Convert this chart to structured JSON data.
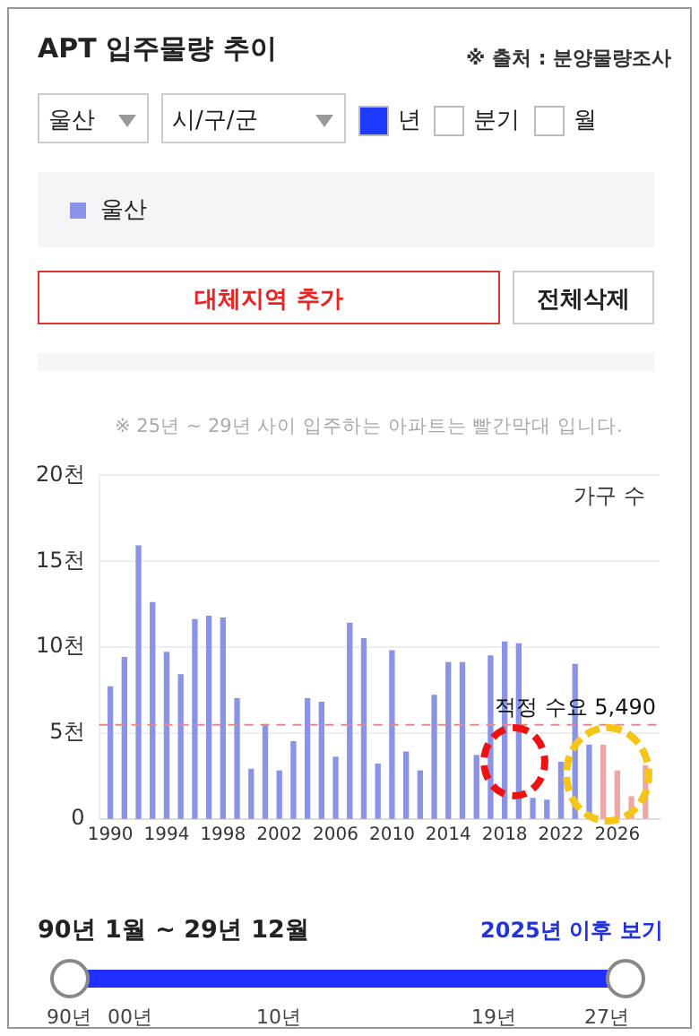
{
  "chart_data": {
    "type": "bar",
    "title": "APT 입주물량 추이",
    "ylabel": "가구 수",
    "x": [
      1990,
      1991,
      1992,
      1993,
      1994,
      1995,
      1996,
      1997,
      1998,
      1999,
      2000,
      2001,
      2002,
      2003,
      2004,
      2005,
      2006,
      2007,
      2008,
      2009,
      2010,
      2011,
      2012,
      2013,
      2014,
      2015,
      2016,
      2017,
      2018,
      2019,
      2020,
      2021,
      2022,
      2023,
      2024,
      2025,
      2026,
      2027,
      2028
    ],
    "series": [
      {
        "name": "울산",
        "color": "#8a93e6",
        "values": [
          7.7,
          9.4,
          15.9,
          12.6,
          9.7,
          8.4,
          11.6,
          11.8,
          11.7,
          7.0,
          2.9,
          5.5,
          2.8,
          4.5,
          7.0,
          6.8,
          3.6,
          11.4,
          10.5,
          3.2,
          9.8,
          3.9,
          2.8,
          7.2,
          9.1,
          9.1,
          3.7,
          9.5,
          10.3,
          10.2,
          1.2,
          1.1,
          3.3,
          9.0,
          4.3,
          4.3,
          2.8,
          1.3,
          3.1
        ],
        "colors": [
          "#8a93e6",
          "#8a93e6",
          "#8a93e6",
          "#8a93e6",
          "#8a93e6",
          "#8a93e6",
          "#8a93e6",
          "#8a93e6",
          "#8a93e6",
          "#8a93e6",
          "#8a93e6",
          "#8a93e6",
          "#8a93e6",
          "#8a93e6",
          "#8a93e6",
          "#8a93e6",
          "#8a93e6",
          "#8a93e6",
          "#8a93e6",
          "#8a93e6",
          "#8a93e6",
          "#8a93e6",
          "#8a93e6",
          "#8a93e6",
          "#8a93e6",
          "#8a93e6",
          "#8a93e6",
          "#8a93e6",
          "#8a93e6",
          "#8a93e6",
          "#8a93e6",
          "#8a93e6",
          "#8a93e6",
          "#8a93e6",
          "#8a93e6",
          "#f0a6a6",
          "#f0a6a6",
          "#f0a6a6",
          "#f0a6a6"
        ]
      }
    ],
    "xlim": [
      1989.2,
      2029
    ],
    "xticks": [
      1990,
      1994,
      1998,
      2002,
      2006,
      2010,
      2014,
      2018,
      2022,
      2026
    ],
    "ylim": [
      0,
      20
    ],
    "yticks": [
      {
        "value": 0,
        "label": "0"
      },
      {
        "value": 5,
        "label": "5천"
      },
      {
        "value": 10,
        "label": "10천"
      },
      {
        "value": 15,
        "label": "15천"
      },
      {
        "value": 20,
        "label": "20천"
      }
    ],
    "grid": "y",
    "legend": "top left",
    "ref_lines": [
      {
        "axis": "y",
        "value": 5.49,
        "label": "적정 수요 5,490",
        "color": "#e88a8a",
        "line_style": "dashed"
      }
    ],
    "annotations": [
      "※ 출처 : 분양물량조사",
      "울산",
      "시/구/군",
      "년",
      "분기",
      "월",
      "대체지역 추가",
      "전체삭제",
      "※ 25년 ~ 29년 사이 입주하는 아파트는 빨간막대 입니다.",
      "90년 1월 ~ 29년 12월",
      "2025년 이후 보기",
      "90년",
      "00년",
      "10년",
      "19년",
      "27년"
    ]
  }
}
